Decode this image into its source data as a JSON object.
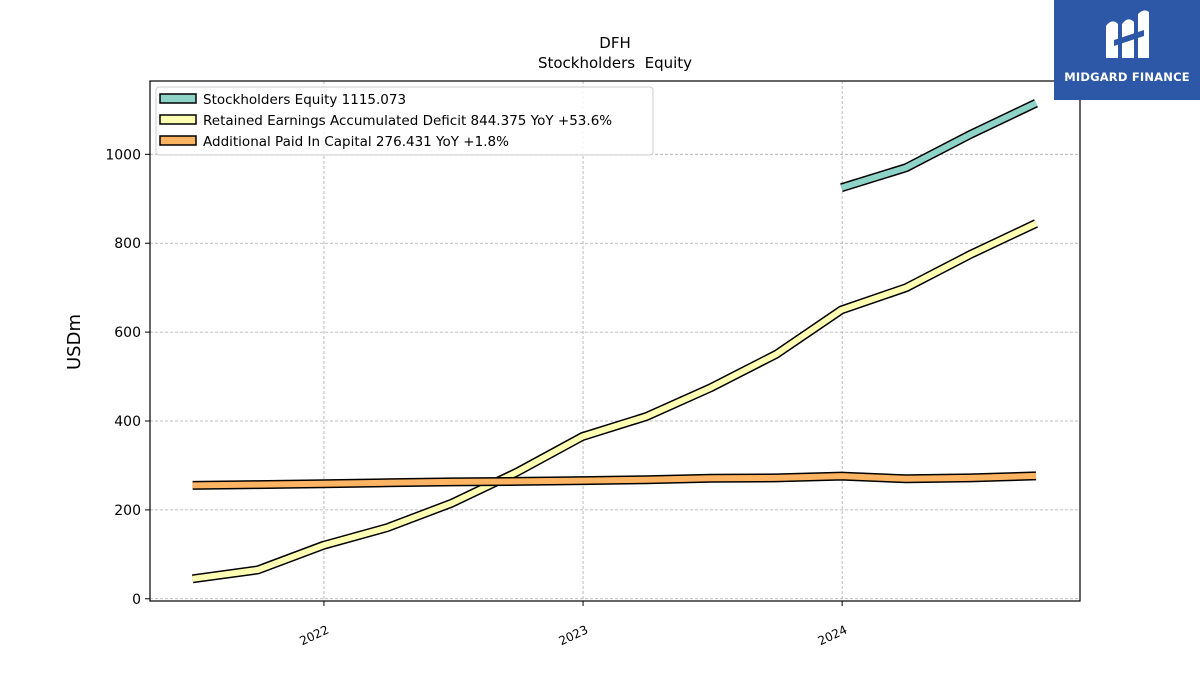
{
  "logo": {
    "text": "MIDGARD FINANCE",
    "icon": "midgard-m-icon",
    "background": "#2d58a7"
  },
  "chart_data": {
    "type": "line",
    "title": "DFH",
    "subtitle": "Stockholders  Equity",
    "xlabel": "",
    "ylabel": "USDm",
    "x_ticks": [
      "2022",
      "2023",
      "2024"
    ],
    "y_ticks": [
      0,
      200,
      400,
      600,
      800,
      1000
    ],
    "ylim": [
      -5,
      1165
    ],
    "xlim": [
      "2021-05",
      "2024-12"
    ],
    "grid": true,
    "legend_position": "top-left",
    "x": [
      "2021-06-30",
      "2021-09-30",
      "2021-12-31",
      "2022-03-31",
      "2022-06-30",
      "2022-09-30",
      "2022-12-31",
      "2023-03-31",
      "2023-06-30",
      "2023-09-30",
      "2023-12-31",
      "2024-03-31",
      "2024-06-30",
      "2024-09-30"
    ],
    "series": [
      {
        "name": "Stockholders Equity",
        "legend_label": "Stockholders Equity  1115.073",
        "color": "#8dd3c7",
        "values": [
          null,
          null,
          null,
          null,
          null,
          null,
          null,
          null,
          null,
          null,
          925,
          970,
          1045,
          1115.073
        ]
      },
      {
        "name": "Retained Earnings Accumulated Deficit",
        "legend_label": "Retained Earnings Accumulated Deficit  844.375 YoY +53.6%",
        "color": "#ffffb3",
        "values": [
          45,
          65,
          120,
          160,
          215,
          285,
          365,
          410,
          475,
          550,
          650,
          700,
          775,
          844.375
        ]
      },
      {
        "name": "Additional Paid In Capital",
        "legend_label": "Additional Paid In Capital  276.431 YoY +1.8%",
        "color": "#fdb462",
        "values": [
          255,
          257,
          259,
          261,
          263,
          264,
          266,
          268,
          271,
          272,
          276,
          270,
          272,
          276.431
        ]
      }
    ]
  }
}
